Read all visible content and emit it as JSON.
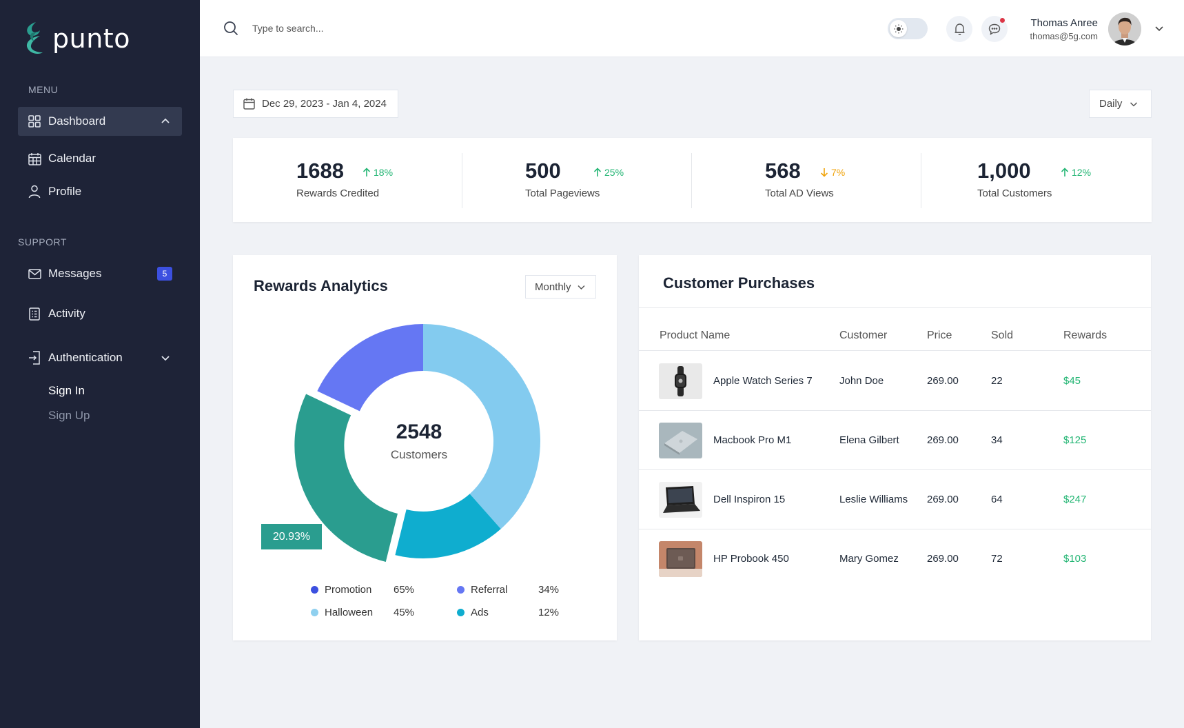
{
  "brand": {
    "name": "punto",
    "accent": "#2a9d8f"
  },
  "sidebar": {
    "menu_label": "MENU",
    "support_label": "SUPPORT",
    "items": [
      {
        "label": "Dashboard",
        "icon": "grid-icon"
      },
      {
        "label": "Calendar",
        "icon": "calendar-icon"
      },
      {
        "label": "Profile",
        "icon": "user-icon"
      },
      {
        "label": "Messages",
        "icon": "mail-icon",
        "badge": "5"
      },
      {
        "label": "Activity",
        "icon": "activity-icon"
      },
      {
        "label": "Authentication",
        "icon": "login-icon"
      }
    ],
    "auth_sub": [
      {
        "label": "Sign In"
      },
      {
        "label": "Sign Up"
      }
    ]
  },
  "header": {
    "search_placeholder": "Type to search...",
    "user": {
      "name": "Thomas Anree",
      "email": "thomas@5g.com"
    }
  },
  "controls": {
    "date_range": "Dec 29, 2023 - Jan 4, 2024",
    "period": "Daily"
  },
  "stats": [
    {
      "value": "1688",
      "delta": "18%",
      "direction": "up",
      "label": "Rewards Credited"
    },
    {
      "value": "500",
      "delta": "25%",
      "direction": "up",
      "label": "Total Pageviews"
    },
    {
      "value": "568",
      "delta": "7%",
      "direction": "down",
      "label": "Total AD Views"
    },
    {
      "value": "1,000",
      "delta": "12%",
      "direction": "up",
      "label": "Total Customers"
    }
  ],
  "rewards": {
    "title": "Rewards Analytics",
    "period": "Monthly",
    "center_value": "2548",
    "center_label": "Customers",
    "highlight": "20.93%",
    "legend": [
      {
        "name": "Promotion",
        "value": "65%",
        "color": "#3c50e0"
      },
      {
        "name": "Referral",
        "value": "34%",
        "color": "#6577f3"
      },
      {
        "name": "Halloween",
        "value": "45%",
        "color": "#8fd0ef"
      },
      {
        "name": "Ads",
        "value": "12%",
        "color": "#0fadcf"
      }
    ]
  },
  "chart_data": {
    "type": "pie",
    "title": "Rewards Analytics",
    "center_value": 2548,
    "center_label": "Customers",
    "highlighted_share": "20.93%",
    "series": [
      {
        "name": "Promotion",
        "value": 65,
        "color": "#3c50e0"
      },
      {
        "name": "Referral",
        "value": 34,
        "color": "#6577f3"
      },
      {
        "name": "Halloween",
        "value": 45,
        "color": "#8fd0ef"
      },
      {
        "name": "Ads",
        "value": 12,
        "color": "#0fadcf"
      }
    ],
    "segments": [
      {
        "share": 0.3846,
        "color": "#83cbef"
      },
      {
        "share": 0.1538,
        "color": "#0fadcf"
      },
      {
        "share": 0.282,
        "color": "#2a9d8f",
        "exploded": true
      },
      {
        "share": 0.1796,
        "color": "#6577f3"
      }
    ]
  },
  "purchases": {
    "title": "Customer Purchases",
    "columns": [
      "Product Name",
      "Customer",
      "Price",
      "Sold",
      "Rewards"
    ],
    "rows": [
      {
        "product": "Apple Watch Series 7",
        "customer": "John Doe",
        "price": "269.00",
        "sold": "22",
        "reward": "$45",
        "thumb": "watch"
      },
      {
        "product": "Macbook Pro M1",
        "customer": "Elena Gilbert",
        "price": "269.00",
        "sold": "34",
        "reward": "$125",
        "thumb": "macbook"
      },
      {
        "product": "Dell Inspiron 15",
        "customer": "Leslie Williams",
        "price": "269.00",
        "sold": "64",
        "reward": "$247",
        "thumb": "dell"
      },
      {
        "product": "HP Probook 450",
        "customer": "Mary Gomez",
        "price": "269.00",
        "sold": "72",
        "reward": "$103",
        "thumb": "hp"
      }
    ]
  }
}
